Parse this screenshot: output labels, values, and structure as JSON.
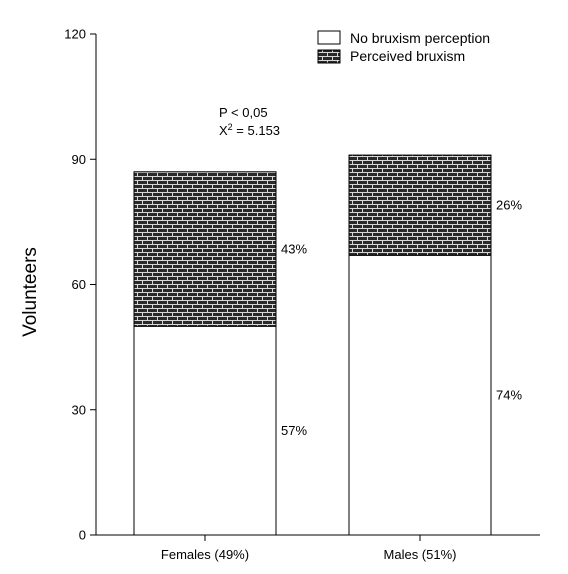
{
  "chart_data": {
    "type": "bar",
    "stacked": true,
    "title": "",
    "xlabel": "",
    "ylabel": "Volunteers",
    "ylim": [
      0,
      120
    ],
    "yticks": [
      0,
      30,
      60,
      90,
      120
    ],
    "categories": [
      "Females (49%)",
      "Males (51%)"
    ],
    "series": [
      {
        "name": "No bruxism perception",
        "values": [
          50,
          67
        ],
        "labels": [
          "57%",
          "74%"
        ],
        "pattern": "none"
      },
      {
        "name": "Perceived bruxism",
        "values": [
          37,
          24
        ],
        "labels": [
          "43%",
          "26%"
        ],
        "pattern": "brick"
      }
    ],
    "annotation": {
      "line1": "P < 0,05",
      "line2_base": "X",
      "line2_sup": "2",
      "line2_rest": " = 5.153"
    },
    "legend_position": "top-right",
    "grid": false
  }
}
